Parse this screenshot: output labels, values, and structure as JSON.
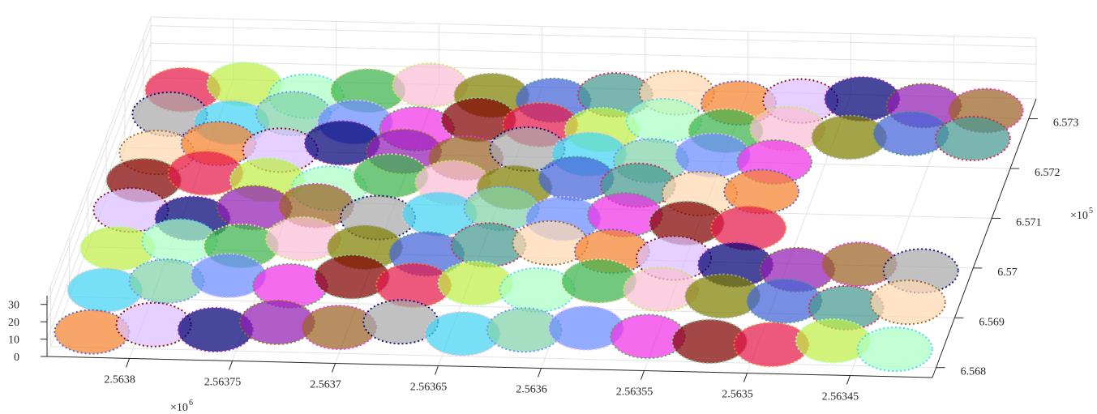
{
  "chart_data": {
    "type": "scatter3d",
    "xlim": [
      2.56384,
      2.56341
    ],
    "ylim": [
      6.5678,
      6.5734
    ],
    "zlim": [
      0,
      35
    ],
    "xticks": [
      2.5638,
      2.56375,
      2.5637,
      2.56365,
      2.5636,
      2.56355,
      2.5635,
      2.56345
    ],
    "yticks": [
      6.568,
      6.569,
      6.57,
      6.571,
      6.572,
      6.573
    ],
    "zticks": [
      0,
      10,
      20,
      30
    ],
    "x_multiplier": {
      "base": "×10",
      "exponent": "6"
    },
    "y_multiplier": {
      "base": "×10",
      "exponent": "5"
    },
    "grid": true,
    "palette": [
      "#e6194b",
      "#3cb44b",
      "#4363d8",
      "#f58231",
      "#911eb4",
      "#42d4f4",
      "#f032e6",
      "#bfef45",
      "#fabed4",
      "#469990",
      "#dcbeff",
      "#9a6324",
      "#7fd3a8",
      "#800000",
      "#aaffc3",
      "#808000",
      "#ffd8b1",
      "#000075",
      "#a9a9a9",
      "#6b8cff"
    ],
    "points": {
      "x": [
        2.56382,
        2.56379,
        2.56376,
        2.56373,
        2.5637,
        2.56367,
        2.56364,
        2.56361,
        2.56358,
        2.56355,
        2.56352,
        2.56349,
        2.56346,
        2.56343,
        2.56382,
        2.56379,
        2.56376,
        2.56373,
        2.5637,
        2.56367,
        2.56364,
        2.56361,
        2.56358,
        2.56355,
        2.56352,
        2.56349,
        2.56346,
        2.56343,
        2.56382,
        2.56379,
        2.56376,
        2.56373,
        2.5637,
        2.56367,
        2.56364,
        2.56361,
        2.56358,
        2.56355,
        2.56352,
        2.56382,
        2.56379,
        2.56376,
        2.56373,
        2.5637,
        2.56367,
        2.56364,
        2.56361,
        2.56358,
        2.56355,
        2.56352,
        2.56382,
        2.56379,
        2.56376,
        2.56373,
        2.5637,
        2.56367,
        2.56364,
        2.56361,
        2.56358,
        2.56355,
        2.56352,
        2.56382,
        2.56379,
        2.56376,
        2.56373,
        2.5637,
        2.56367,
        2.56364,
        2.56361,
        2.56358,
        2.56355,
        2.56352,
        2.56349,
        2.56346,
        2.56343,
        2.56382,
        2.56379,
        2.56376,
        2.56373,
        2.5637,
        2.56367,
        2.56364,
        2.56361,
        2.56358,
        2.56355,
        2.56352,
        2.56349,
        2.56346,
        2.56343,
        2.56382,
        2.56379,
        2.56376,
        2.56373,
        2.5637,
        2.56367,
        2.56364,
        2.56361,
        2.56358,
        2.56355,
        2.56352,
        2.56349,
        2.56346,
        2.56343
      ],
      "y": [
        6.5729,
        6.5729,
        6.5729,
        6.5729,
        6.5729,
        6.5729,
        6.5729,
        6.5729,
        6.5729,
        6.5729,
        6.5729,
        6.5729,
        6.5729,
        6.5729,
        6.5722,
        6.5722,
        6.5722,
        6.5722,
        6.5722,
        6.5722,
        6.5722,
        6.5722,
        6.5722,
        6.5722,
        6.5722,
        6.5722,
        6.5722,
        6.5722,
        6.5715,
        6.5715,
        6.5715,
        6.5715,
        6.5715,
        6.5715,
        6.5715,
        6.5715,
        6.5715,
        6.5715,
        6.5715,
        6.5708,
        6.5708,
        6.5708,
        6.5708,
        6.5708,
        6.5708,
        6.5708,
        6.5708,
        6.5708,
        6.5708,
        6.5708,
        6.5701,
        6.5701,
        6.5701,
        6.5701,
        6.5701,
        6.5701,
        6.5701,
        6.5701,
        6.5701,
        6.5701,
        6.5701,
        6.5694,
        6.5694,
        6.5694,
        6.5694,
        6.5694,
        6.5694,
        6.5694,
        6.5694,
        6.5694,
        6.5694,
        6.5694,
        6.5694,
        6.5694,
        6.5694,
        6.5687,
        6.5687,
        6.5687,
        6.5687,
        6.5687,
        6.5687,
        6.5687,
        6.5687,
        6.5687,
        6.5687,
        6.5687,
        6.5687,
        6.5687,
        6.5687,
        6.568,
        6.568,
        6.568,
        6.568,
        6.568,
        6.568,
        6.568,
        6.568,
        6.568,
        6.568,
        6.568,
        6.568,
        6.568,
        6.568
      ],
      "z": [
        8,
        12,
        6,
        10,
        14,
        9,
        7,
        11,
        13,
        8,
        10,
        12,
        9,
        7,
        14,
        10,
        16,
        12,
        9,
        15,
        13,
        11,
        17,
        12,
        14,
        10,
        13,
        11,
        12,
        18,
        15,
        20,
        16,
        13,
        19,
        17,
        14,
        18,
        15,
        16,
        21,
        18,
        14,
        22,
        19,
        17,
        23,
        20,
        16,
        18,
        19,
        15,
        22,
        24,
        18,
        21,
        25,
        20,
        23,
        19,
        17,
        17,
        22,
        20,
        25,
        21,
        18,
        24,
        26,
        22,
        19,
        16,
        14,
        18,
        15,
        13,
        19,
        23,
        18,
        24,
        20,
        22,
        19,
        25,
        21,
        18,
        16,
        13,
        17,
        9,
        14,
        12,
        17,
        15,
        19,
        13,
        16,
        18,
        14,
        12,
        11,
        14,
        10
      ]
    }
  }
}
